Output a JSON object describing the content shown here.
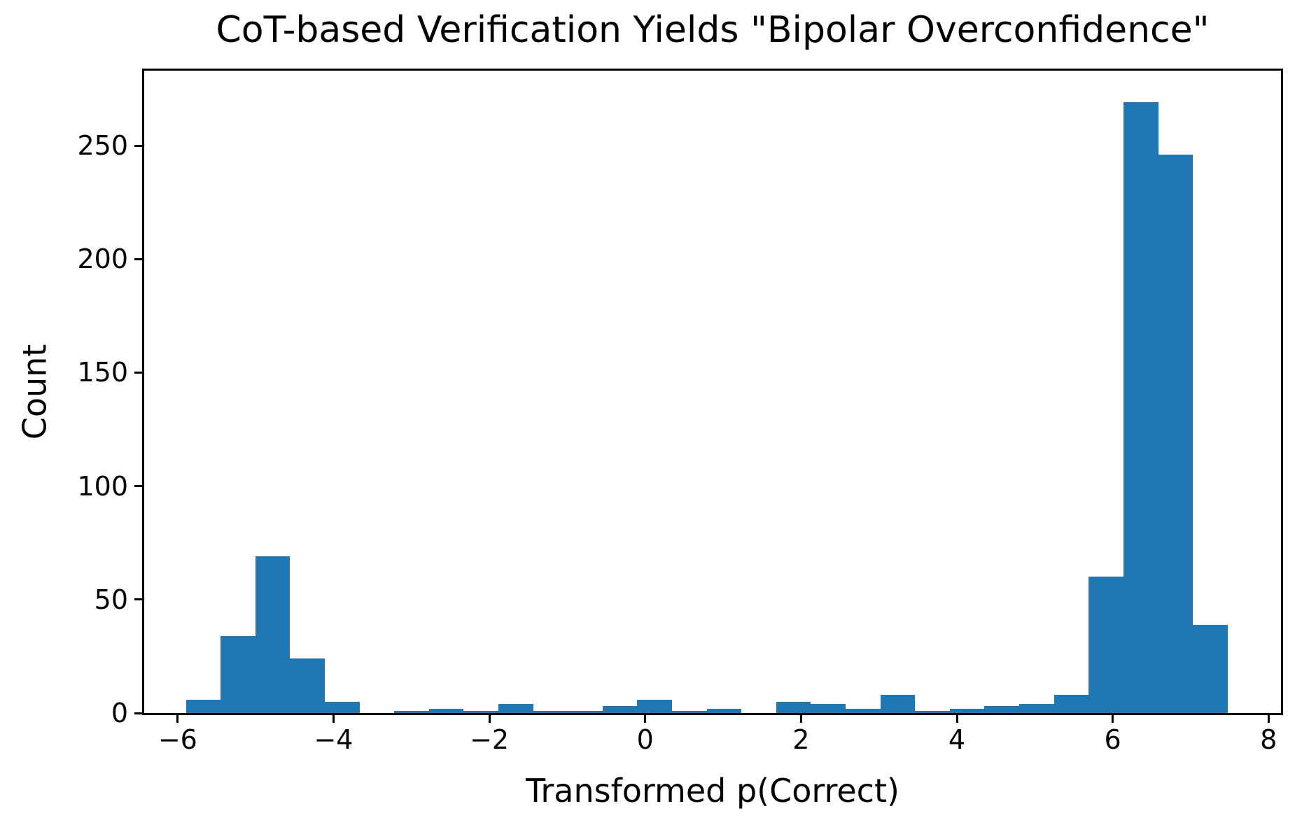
{
  "title": "CoT-based Verification Yields \"Bipolar Overconfidence\"",
  "chart_data": {
    "type": "bar",
    "subtype": "histogram",
    "title": "CoT-based Verification Yields \"Bipolar Overconfidence\"",
    "xlabel": "Transformed p(Correct)",
    "ylabel": "Count",
    "bar_color": "#1f77b4",
    "axis_color": "#000000",
    "background_color": "#ffffff",
    "grid": false,
    "legend": null,
    "bin_edges": [
      -5.895,
      -5.449,
      -5.004,
      -4.558,
      -4.112,
      -3.667,
      -3.221,
      -2.775,
      -2.33,
      -1.884,
      -1.438,
      -0.993,
      -0.547,
      -0.101,
      0.344,
      0.79,
      1.236,
      1.681,
      2.127,
      2.573,
      3.018,
      3.464,
      3.91,
      4.355,
      4.801,
      5.247,
      5.692,
      6.138,
      6.584,
      7.029,
      7.475
    ],
    "counts": [
      6,
      34,
      69,
      24,
      5,
      0,
      1,
      2,
      1,
      4,
      1,
      1,
      3,
      6,
      1,
      2,
      0,
      5,
      4,
      2,
      8,
      1,
      2,
      3,
      4,
      8,
      60,
      269,
      246,
      39
    ],
    "x_ticks": [
      -6,
      -4,
      -2,
      0,
      2,
      4,
      6,
      8
    ],
    "x_tick_labels": [
      "−6",
      "−4",
      "−2",
      "0",
      "2",
      "4",
      "6",
      "8"
    ],
    "y_ticks": [
      0,
      50,
      100,
      150,
      200,
      250
    ],
    "y_tick_labels": [
      "0",
      "50",
      "100",
      "150",
      "200",
      "250"
    ],
    "xlim": [
      -6.43,
      8.16
    ],
    "ylim": [
      0,
      283
    ]
  }
}
